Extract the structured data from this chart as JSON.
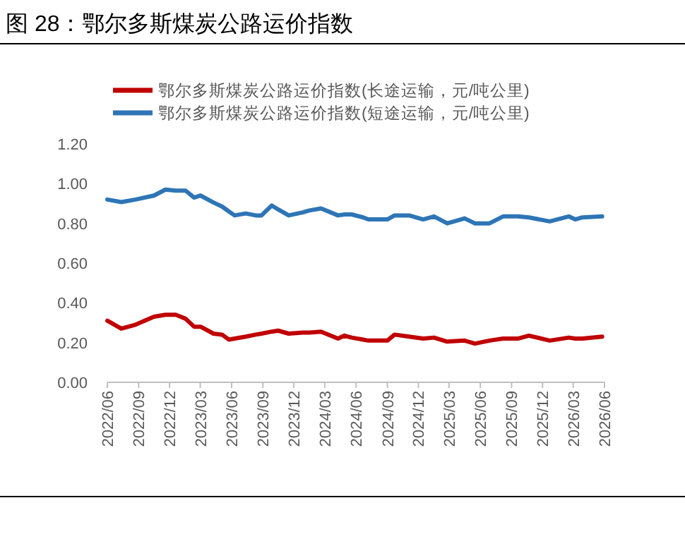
{
  "chart_data": {
    "type": "line",
    "title": "图 28：鄂尔多斯煤炭公路运价指数",
    "x": [
      "2022-06-01",
      "2022-07-12",
      "2022-08-23",
      "2022-10-16",
      "2022-11-19",
      "2022-12-19",
      "2023-01-17",
      "2023-02-11",
      "2023-03-02",
      "2023-04-09",
      "2023-05-04",
      "2023-05-24",
      "2023-06-10",
      "2023-07-13",
      "2023-08-11",
      "2023-08-28",
      "2023-09-27",
      "2023-10-16",
      "2023-11-16",
      "2023-12-27",
      "2024-01-16",
      "2024-02-19",
      "2024-04-09",
      "2024-04-28",
      "2024-05-19",
      "2024-06-22",
      "2024-07-07",
      "2024-08-10",
      "2024-09-01",
      "2024-09-22",
      "2024-11-04",
      "2024-12-15",
      "2025-01-16",
      "2025-02-24",
      "2025-04-16",
      "2025-05-16",
      "2025-06-28",
      "2025-08-07",
      "2025-09-19",
      "2025-10-22",
      "2025-12-22",
      "2026-02-16",
      "2026-03-07",
      "2026-03-28",
      "2026-05-25"
    ],
    "series": [
      {
        "name": "鄂尔多斯煤炭公路运价指数(长途运输，元/吨公里)",
        "color": "#c00000",
        "values": [
          0.31,
          0.27,
          0.29,
          0.33,
          0.34,
          0.34,
          0.32,
          0.28,
          0.28,
          0.245,
          0.24,
          0.215,
          0.22,
          0.23,
          0.24,
          0.245,
          0.255,
          0.26,
          0.245,
          0.25,
          0.25,
          0.255,
          0.22,
          0.235,
          0.225,
          0.215,
          0.21,
          0.21,
          0.21,
          0.24,
          0.23,
          0.22,
          0.225,
          0.205,
          0.21,
          0.195,
          0.21,
          0.22,
          0.22,
          0.235,
          0.21,
          0.225,
          0.22,
          0.22,
          0.23
        ]
      },
      {
        "name": "鄂尔多斯煤炭公路运价指数(短途运输，元/吨公里)",
        "color": "#2e75b6",
        "values": [
          0.92,
          0.907,
          0.92,
          0.94,
          0.97,
          0.965,
          0.965,
          0.93,
          0.94,
          0.905,
          0.885,
          0.86,
          0.84,
          0.85,
          0.84,
          0.84,
          0.89,
          0.87,
          0.84,
          0.855,
          0.865,
          0.875,
          0.84,
          0.845,
          0.845,
          0.83,
          0.82,
          0.82,
          0.82,
          0.84,
          0.84,
          0.82,
          0.835,
          0.8,
          0.825,
          0.8,
          0.8,
          0.835,
          0.835,
          0.83,
          0.81,
          0.835,
          0.82,
          0.83,
          0.835
        ]
      }
    ],
    "xlim": [
      "2022-06-01",
      "2026-06-01"
    ],
    "xticks": [
      {
        "value": "2022-06-01",
        "label": "2022/06"
      },
      {
        "value": "2022-09-01",
        "label": "2022/09"
      },
      {
        "value": "2022-12-01",
        "label": "2022/12"
      },
      {
        "value": "2023-03-01",
        "label": "2023/03"
      },
      {
        "value": "2023-06-01",
        "label": "2023/06"
      },
      {
        "value": "2023-09-01",
        "label": "2023/09"
      },
      {
        "value": "2023-12-01",
        "label": "2023/12"
      },
      {
        "value": "2024-03-01",
        "label": "2024/03"
      },
      {
        "value": "2024-06-01",
        "label": "2024/06"
      },
      {
        "value": "2024-09-01",
        "label": "2024/09"
      },
      {
        "value": "2024-12-01",
        "label": "2024/12"
      },
      {
        "value": "2025-03-01",
        "label": "2025/03"
      },
      {
        "value": "2025-06-01",
        "label": "2025/06"
      },
      {
        "value": "2025-09-01",
        "label": "2025/09"
      },
      {
        "value": "2025-12-01",
        "label": "2025/12"
      },
      {
        "value": "2026-03-01",
        "label": "2026/03"
      },
      {
        "value": "2026-06-01",
        "label": "2026/06"
      }
    ],
    "ylim": [
      0,
      1.2
    ],
    "yticks": [
      {
        "value": 0,
        "label": "0.00"
      },
      {
        "value": 0.2,
        "label": "0.20"
      },
      {
        "value": 0.4,
        "label": "0.40"
      },
      {
        "value": 0.6,
        "label": "0.60"
      },
      {
        "value": 0.8,
        "label": "0.80"
      },
      {
        "value": 1.0,
        "label": "1.00"
      },
      {
        "value": 1.2,
        "label": "1.20"
      }
    ],
    "grid": false,
    "legend": "top",
    "marker": "none",
    "line_style": "solid"
  }
}
